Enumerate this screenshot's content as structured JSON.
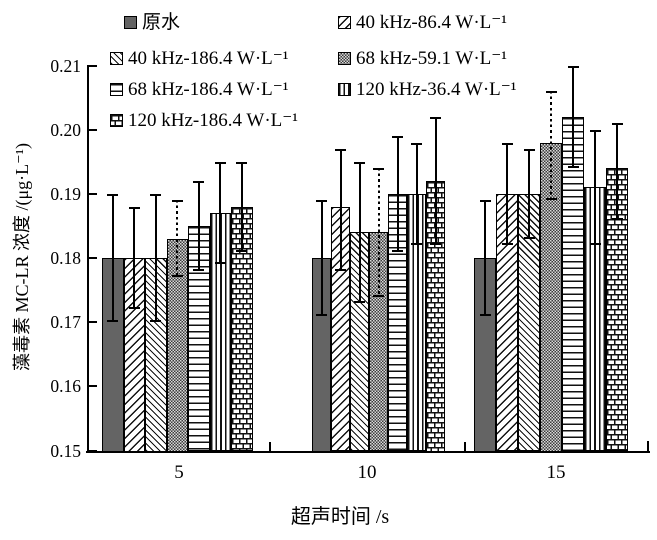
{
  "figure": {
    "background": "#ffffff",
    "frame_color": "#b5b5b5",
    "axis_color": "#000000",
    "pattern_line_color": "#111111"
  },
  "chart_data": {
    "type": "bar",
    "title": "",
    "xlabel": "超声时间 /s",
    "ylabel": "藻毒素 MC-LR 浓度 /(μg·L⁻¹)",
    "categories": [
      "5",
      "10",
      "15"
    ],
    "ylim": [
      0.15,
      0.21
    ],
    "ytick_step": 0.01,
    "yticks": [
      "0.21",
      "0.20",
      "0.19",
      "0.18",
      "0.17",
      "0.16",
      "0.15"
    ],
    "grid": false,
    "error_bars": true,
    "legend_position": "top-inside",
    "series": [
      {
        "name": "原水",
        "pattern": "solid",
        "fill": "#646464",
        "error_style": "solid",
        "values": [
          0.18,
          0.18,
          0.18
        ],
        "errors_low": [
          0.17,
          0.171,
          0.171
        ],
        "errors_high": [
          0.19,
          0.189,
          0.189
        ]
      },
      {
        "name": "40 kHz-86.4 W·L⁻¹",
        "pattern": "diag-up",
        "fill": "#ffffff",
        "error_style": "solid",
        "values": [
          0.18,
          0.188,
          0.19
        ],
        "errors_low": [
          0.172,
          0.178,
          0.182
        ],
        "errors_high": [
          0.188,
          0.197,
          0.198
        ]
      },
      {
        "name": "40 kHz-186.4 W·L⁻¹",
        "pattern": "diag-down",
        "fill": "#ffffff",
        "error_style": "solid",
        "values": [
          0.18,
          0.184,
          0.19
        ],
        "errors_low": [
          0.17,
          0.173,
          0.183
        ],
        "errors_high": [
          0.19,
          0.195,
          0.197
        ]
      },
      {
        "name": "68 kHz-59.1 W·L⁻¹",
        "pattern": "dots",
        "fill": "#d9d9d9",
        "error_style": "dashed",
        "values": [
          0.183,
          0.184,
          0.198
        ],
        "errors_low": [
          0.177,
          0.174,
          0.189
        ],
        "errors_high": [
          0.189,
          0.194,
          0.206
        ]
      },
      {
        "name": "68 kHz-186.4 W·L⁻¹",
        "pattern": "horizontal",
        "fill": "#ffffff",
        "error_style": "solid",
        "values": [
          0.185,
          0.19,
          0.202
        ],
        "errors_low": [
          0.178,
          0.181,
          0.194
        ],
        "errors_high": [
          0.192,
          0.199,
          0.21
        ]
      },
      {
        "name": "120 kHz-36.4 W·L⁻¹",
        "pattern": "vertical",
        "fill": "#ffffff",
        "error_style": "solid",
        "values": [
          0.187,
          0.19,
          0.191
        ],
        "errors_low": [
          0.179,
          0.182,
          0.182
        ],
        "errors_high": [
          0.195,
          0.198,
          0.2
        ]
      },
      {
        "name": "120 kHz-186.4 W·L⁻¹",
        "pattern": "brick",
        "fill": "#ffffff",
        "error_style": "solid",
        "values": [
          0.188,
          0.192,
          0.194
        ],
        "errors_low": [
          0.181,
          0.182,
          0.186
        ],
        "errors_high": [
          0.195,
          0.202,
          0.201
        ]
      }
    ]
  }
}
